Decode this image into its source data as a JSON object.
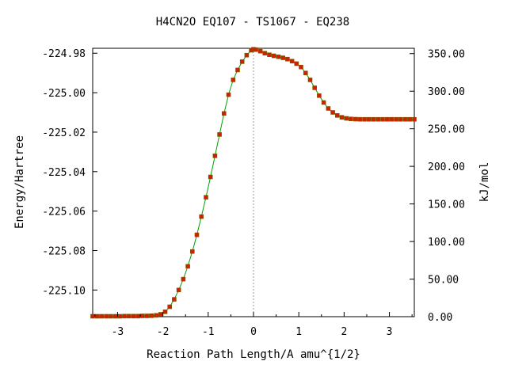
{
  "chart_data": {
    "type": "line",
    "title": "H4CN2O   EQ107 - TS1067 - EQ238",
    "xlabel": "Reaction Path Length/A amu^{1/2}",
    "ylabel": "Energy/Hartree",
    "y2label": "kJ/mol",
    "xlim": [
      -3.55,
      3.55
    ],
    "ylim": [
      -225.1135,
      -224.9775
    ],
    "y2lim": [
      0.0,
      357.1
    ],
    "grid": false,
    "xticks": [
      -3,
      -2,
      -1,
      0,
      1,
      2,
      3
    ],
    "xtick_labels": [
      "-3",
      "-2",
      "-1",
      "0",
      "1",
      "2",
      "3"
    ],
    "yticks": [
      -224.98,
      -225.0,
      -225.02,
      -225.04,
      -225.06,
      -225.08,
      -225.1
    ],
    "ytick_labels": [
      "-224.98",
      "-225.00",
      "-225.02",
      "-225.04",
      "-225.06",
      "-225.08",
      "-225.10"
    ],
    "y2ticks": [
      0,
      50,
      100,
      150,
      200,
      250,
      300,
      350
    ],
    "y2tick_labels": [
      "0.00",
      "50.00",
      "100.00",
      "150.00",
      "200.00",
      "250.00",
      "300.00",
      "350.00"
    ],
    "ts_marker_x": 0,
    "colors": {
      "curve": "#00a000",
      "points": "#cc2200",
      "ts_line": "#999999",
      "frame": "#000000"
    },
    "series": [
      {
        "x": [
          -3.55,
          -3.45,
          -3.35,
          -3.25,
          -3.15,
          -3.05,
          -2.95,
          -2.85,
          -2.75,
          -2.65,
          -2.55,
          -2.45,
          -2.35,
          -2.25,
          -2.15,
          -2.05,
          -1.95,
          -1.85,
          -1.75,
          -1.65,
          -1.55,
          -1.45,
          -1.35,
          -1.25,
          -1.15,
          -1.05,
          -0.95,
          -0.85,
          -0.75,
          -0.65,
          -0.55,
          -0.45,
          -0.35,
          -0.25,
          -0.15,
          -0.05,
          0.0,
          0.05,
          0.15,
          0.25,
          0.35,
          0.45,
          0.55,
          0.65,
          0.75,
          0.85,
          0.95,
          1.05,
          1.15,
          1.25,
          1.35,
          1.45,
          1.55,
          1.65,
          1.75,
          1.85,
          1.95,
          2.05,
          2.15,
          2.25,
          2.35,
          2.45,
          2.55,
          2.65,
          2.75,
          2.85,
          2.95,
          3.05,
          3.15,
          3.25,
          3.35,
          3.45,
          3.55
        ],
        "y": [
          -225.1133,
          -225.1133,
          -225.1133,
          -225.1133,
          -225.1133,
          -225.1133,
          -225.1133,
          -225.1132,
          -225.1132,
          -225.1132,
          -225.1132,
          -225.1131,
          -225.1131,
          -225.113,
          -225.1128,
          -225.1123,
          -225.111,
          -225.1085,
          -225.1047,
          -225.1,
          -225.0945,
          -225.088,
          -225.0805,
          -225.072,
          -225.0628,
          -225.053,
          -225.0427,
          -225.032,
          -225.0212,
          -225.0105,
          -225.001,
          -224.9935,
          -224.9885,
          -224.9843,
          -224.981,
          -224.9785,
          -224.978,
          -224.9782,
          -224.979,
          -224.98,
          -224.9808,
          -224.9813,
          -224.9818,
          -224.9823,
          -224.983,
          -224.984,
          -224.9853,
          -224.987,
          -224.99,
          -224.9935,
          -224.9975,
          -225.0015,
          -225.005,
          -225.008,
          -225.01,
          -225.0115,
          -225.0125,
          -225.013,
          -225.0133,
          -225.0134,
          -225.0135,
          -225.0135,
          -225.0135,
          -225.0135,
          -225.0135,
          -225.0135,
          -225.0135,
          -225.0135,
          -225.0135,
          -225.0135,
          -225.0135,
          -225.0135,
          -225.0135
        ]
      }
    ]
  }
}
